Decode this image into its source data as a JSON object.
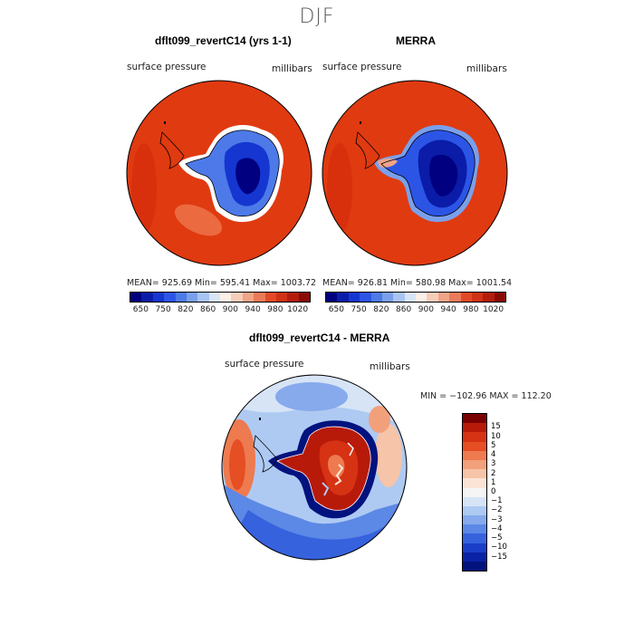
{
  "main_title": "DJF",
  "panels": [
    {
      "title": "dflt099_revertC14 (yrs 1-1)",
      "left_label": "surface pressure",
      "right_label": "millibars",
      "stats": "MEAN= 925.69   Min= 595.41   Max= 1003.72"
    },
    {
      "title": "MERRA",
      "left_label": "surface pressure",
      "right_label": "millibars",
      "stats": "MEAN= 926.81   Min= 580.98   Max= 1001.54"
    }
  ],
  "diff_panel": {
    "title": "dflt099_revertC14 - MERRA",
    "left_label": "surface pressure",
    "right_label": "millibars",
    "minmax": "MIN = −102.96  MAX = 112.20"
  },
  "colorbar_horizontal": {
    "colors": [
      "#000080",
      "#0a1ca8",
      "#1536d0",
      "#2c55e6",
      "#4d7ae8",
      "#7aa0ec",
      "#a9c4f2",
      "#d8e4f8",
      "#fbf0e8",
      "#f6cdb8",
      "#f0a488",
      "#eb7a5a",
      "#e14a25",
      "#cf3214",
      "#b21d0c",
      "#8a0b04"
    ],
    "tick_labels": [
      "650",
      "750",
      "820",
      "860",
      "900",
      "940",
      "980",
      "1020"
    ]
  },
  "colorbar_vertical": {
    "colors": [
      "#7a0000",
      "#b81a0a",
      "#d63214",
      "#e64e24",
      "#ee7a50",
      "#f2a07c",
      "#f6c4a8",
      "#fbe4d6",
      "#f5f5f5",
      "#d6e4f6",
      "#aecaf2",
      "#86aaec",
      "#5c88e6",
      "#3662de",
      "#1a3ec8",
      "#0a22a6",
      "#02127e"
    ],
    "tick_labels": [
      "15",
      "10",
      "5",
      "4",
      "3",
      "2",
      "1",
      "0",
      "−1",
      "−2",
      "−3",
      "−4",
      "−5",
      "−10",
      "−15"
    ]
  }
}
